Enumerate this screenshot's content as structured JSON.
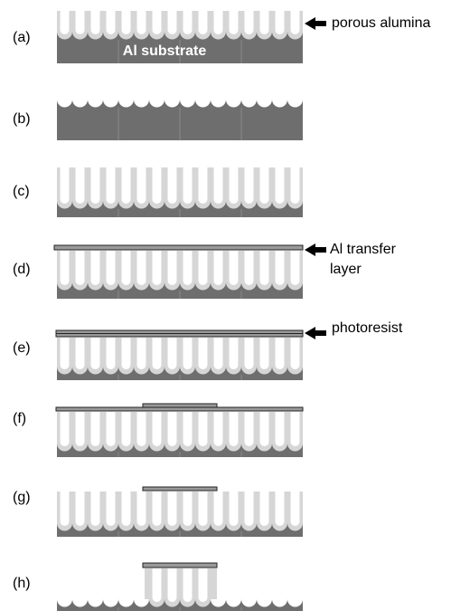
{
  "panels": [
    {
      "label": "(a)"
    },
    {
      "label": "(b)"
    },
    {
      "label": "(c)"
    },
    {
      "label": "(d)"
    },
    {
      "label": "(e)"
    },
    {
      "label": "(f)"
    },
    {
      "label": "(g)"
    },
    {
      "label": "(h)"
    }
  ],
  "annotations": {
    "porous_alumina": "porous alumina",
    "al_substrate": "Al substrate",
    "al_transfer_layer": [
      "Al transfer",
      "layer"
    ],
    "photoresist": "photoresist"
  }
}
